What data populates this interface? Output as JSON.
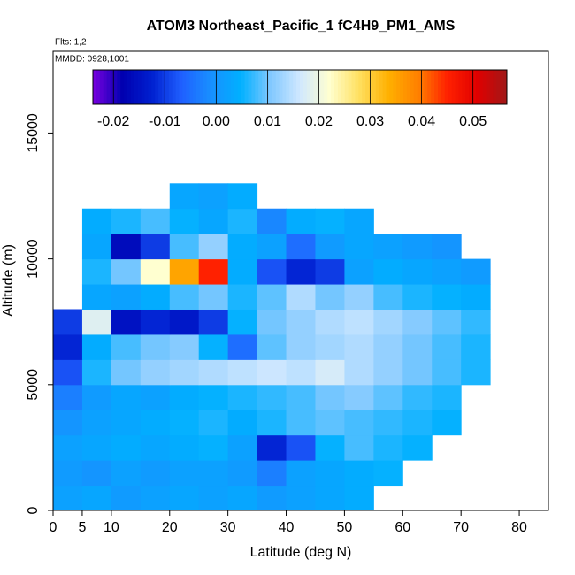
{
  "chart_data": {
    "type": "heatmap",
    "title": "ATOM3 Northeast_Pacific_1 fC4H9_PM1_AMS",
    "subtitle": "Flts: 1,2",
    "annotation": "MMDD: 0928,1001",
    "x_label": "Latitude (deg N)",
    "y_label": "Altitude (m)",
    "xlim": [
      0,
      85
    ],
    "ylim": [
      0,
      18250
    ],
    "xticks": [
      0,
      5,
      10,
      20,
      30,
      40,
      50,
      60,
      70,
      80
    ],
    "yticks": [
      0,
      5000,
      10000,
      15000
    ],
    "x_edges": [
      0,
      5,
      10,
      15,
      20,
      25,
      30,
      35,
      40,
      45,
      50,
      55,
      60,
      65,
      70,
      75
    ],
    "y_edges": [
      0,
      1000,
      2000,
      3000,
      4000,
      5000,
      6000,
      7000,
      8000,
      9000,
      10000,
      11000,
      12000,
      13000
    ],
    "values": [
      [
        0.002,
        0.003,
        0.001,
        0.002,
        0.003,
        0.002,
        0.003,
        0.001,
        0.002,
        0.003,
        0.004,
        null,
        null,
        null,
        null
      ],
      [
        0.001,
        0.0,
        0.002,
        0.001,
        0.002,
        0.002,
        0.001,
        -0.003,
        0.002,
        0.003,
        0.004,
        0.005,
        null,
        null,
        null
      ],
      [
        0.002,
        0.003,
        0.004,
        0.003,
        0.004,
        0.005,
        0.002,
        -0.012,
        -0.008,
        0.005,
        0.008,
        0.006,
        0.005,
        null,
        null
      ],
      [
        0.0,
        0.002,
        0.003,
        0.004,
        0.005,
        0.006,
        0.004,
        0.006,
        0.008,
        0.009,
        0.008,
        0.007,
        0.006,
        0.005,
        null
      ],
      [
        -0.003,
        0.001,
        0.003,
        0.002,
        0.004,
        0.005,
        0.006,
        0.007,
        0.008,
        0.01,
        0.011,
        0.009,
        0.007,
        0.006,
        null
      ],
      [
        -0.008,
        0.006,
        0.01,
        0.012,
        0.013,
        0.014,
        0.015,
        0.016,
        0.015,
        0.017,
        0.014,
        0.012,
        0.01,
        0.008,
        0.006
      ],
      [
        -0.012,
        0.004,
        0.008,
        0.01,
        0.011,
        0.005,
        -0.005,
        0.009,
        0.012,
        0.013,
        0.014,
        0.012,
        0.01,
        0.008,
        0.006
      ],
      [
        -0.01,
        0.018,
        -0.015,
        -0.012,
        -0.014,
        -0.01,
        0.005,
        0.01,
        0.012,
        0.014,
        0.015,
        0.013,
        0.011,
        0.009,
        0.007
      ],
      [
        null,
        0.003,
        0.002,
        0.004,
        0.008,
        0.01,
        0.006,
        0.009,
        0.014,
        0.01,
        0.012,
        0.008,
        0.006,
        0.005,
        0.004
      ],
      [
        null,
        0.006,
        0.01,
        0.022,
        0.035,
        0.045,
        0.004,
        -0.008,
        -0.012,
        -0.01,
        0.002,
        0.004,
        0.003,
        0.002,
        0.001
      ],
      [
        null,
        0.003,
        -0.016,
        -0.01,
        0.008,
        0.012,
        0.004,
        0.002,
        -0.005,
        0.001,
        0.003,
        0.002,
        0.001,
        0.0,
        null
      ],
      [
        null,
        0.004,
        0.006,
        0.008,
        0.005,
        0.003,
        0.006,
        -0.002,
        0.004,
        0.005,
        0.003,
        null,
        null,
        null,
        null
      ],
      [
        null,
        null,
        null,
        null,
        0.003,
        0.002,
        0.004,
        null,
        null,
        null,
        null,
        null,
        null,
        null,
        null
      ]
    ],
    "clim": [
      -0.024,
      0.0566
    ],
    "cticks": [
      -0.02,
      -0.01,
      {
        "value": 0,
        "label": "0.00"
      },
      0.01,
      0.02,
      0.03,
      0.04,
      0.05
    ],
    "colors": [
      "#7a00e0",
      "#0000b0",
      "#0020d0",
      "#2060ff",
      "#1890ff",
      "#00b0ff",
      "#80c8ff",
      "#d0e8ff",
      "#ffffd0",
      "#ffe060",
      "#ffb000",
      "#ff8000",
      "#ff2000",
      "#e00000",
      "#a01818"
    ]
  }
}
